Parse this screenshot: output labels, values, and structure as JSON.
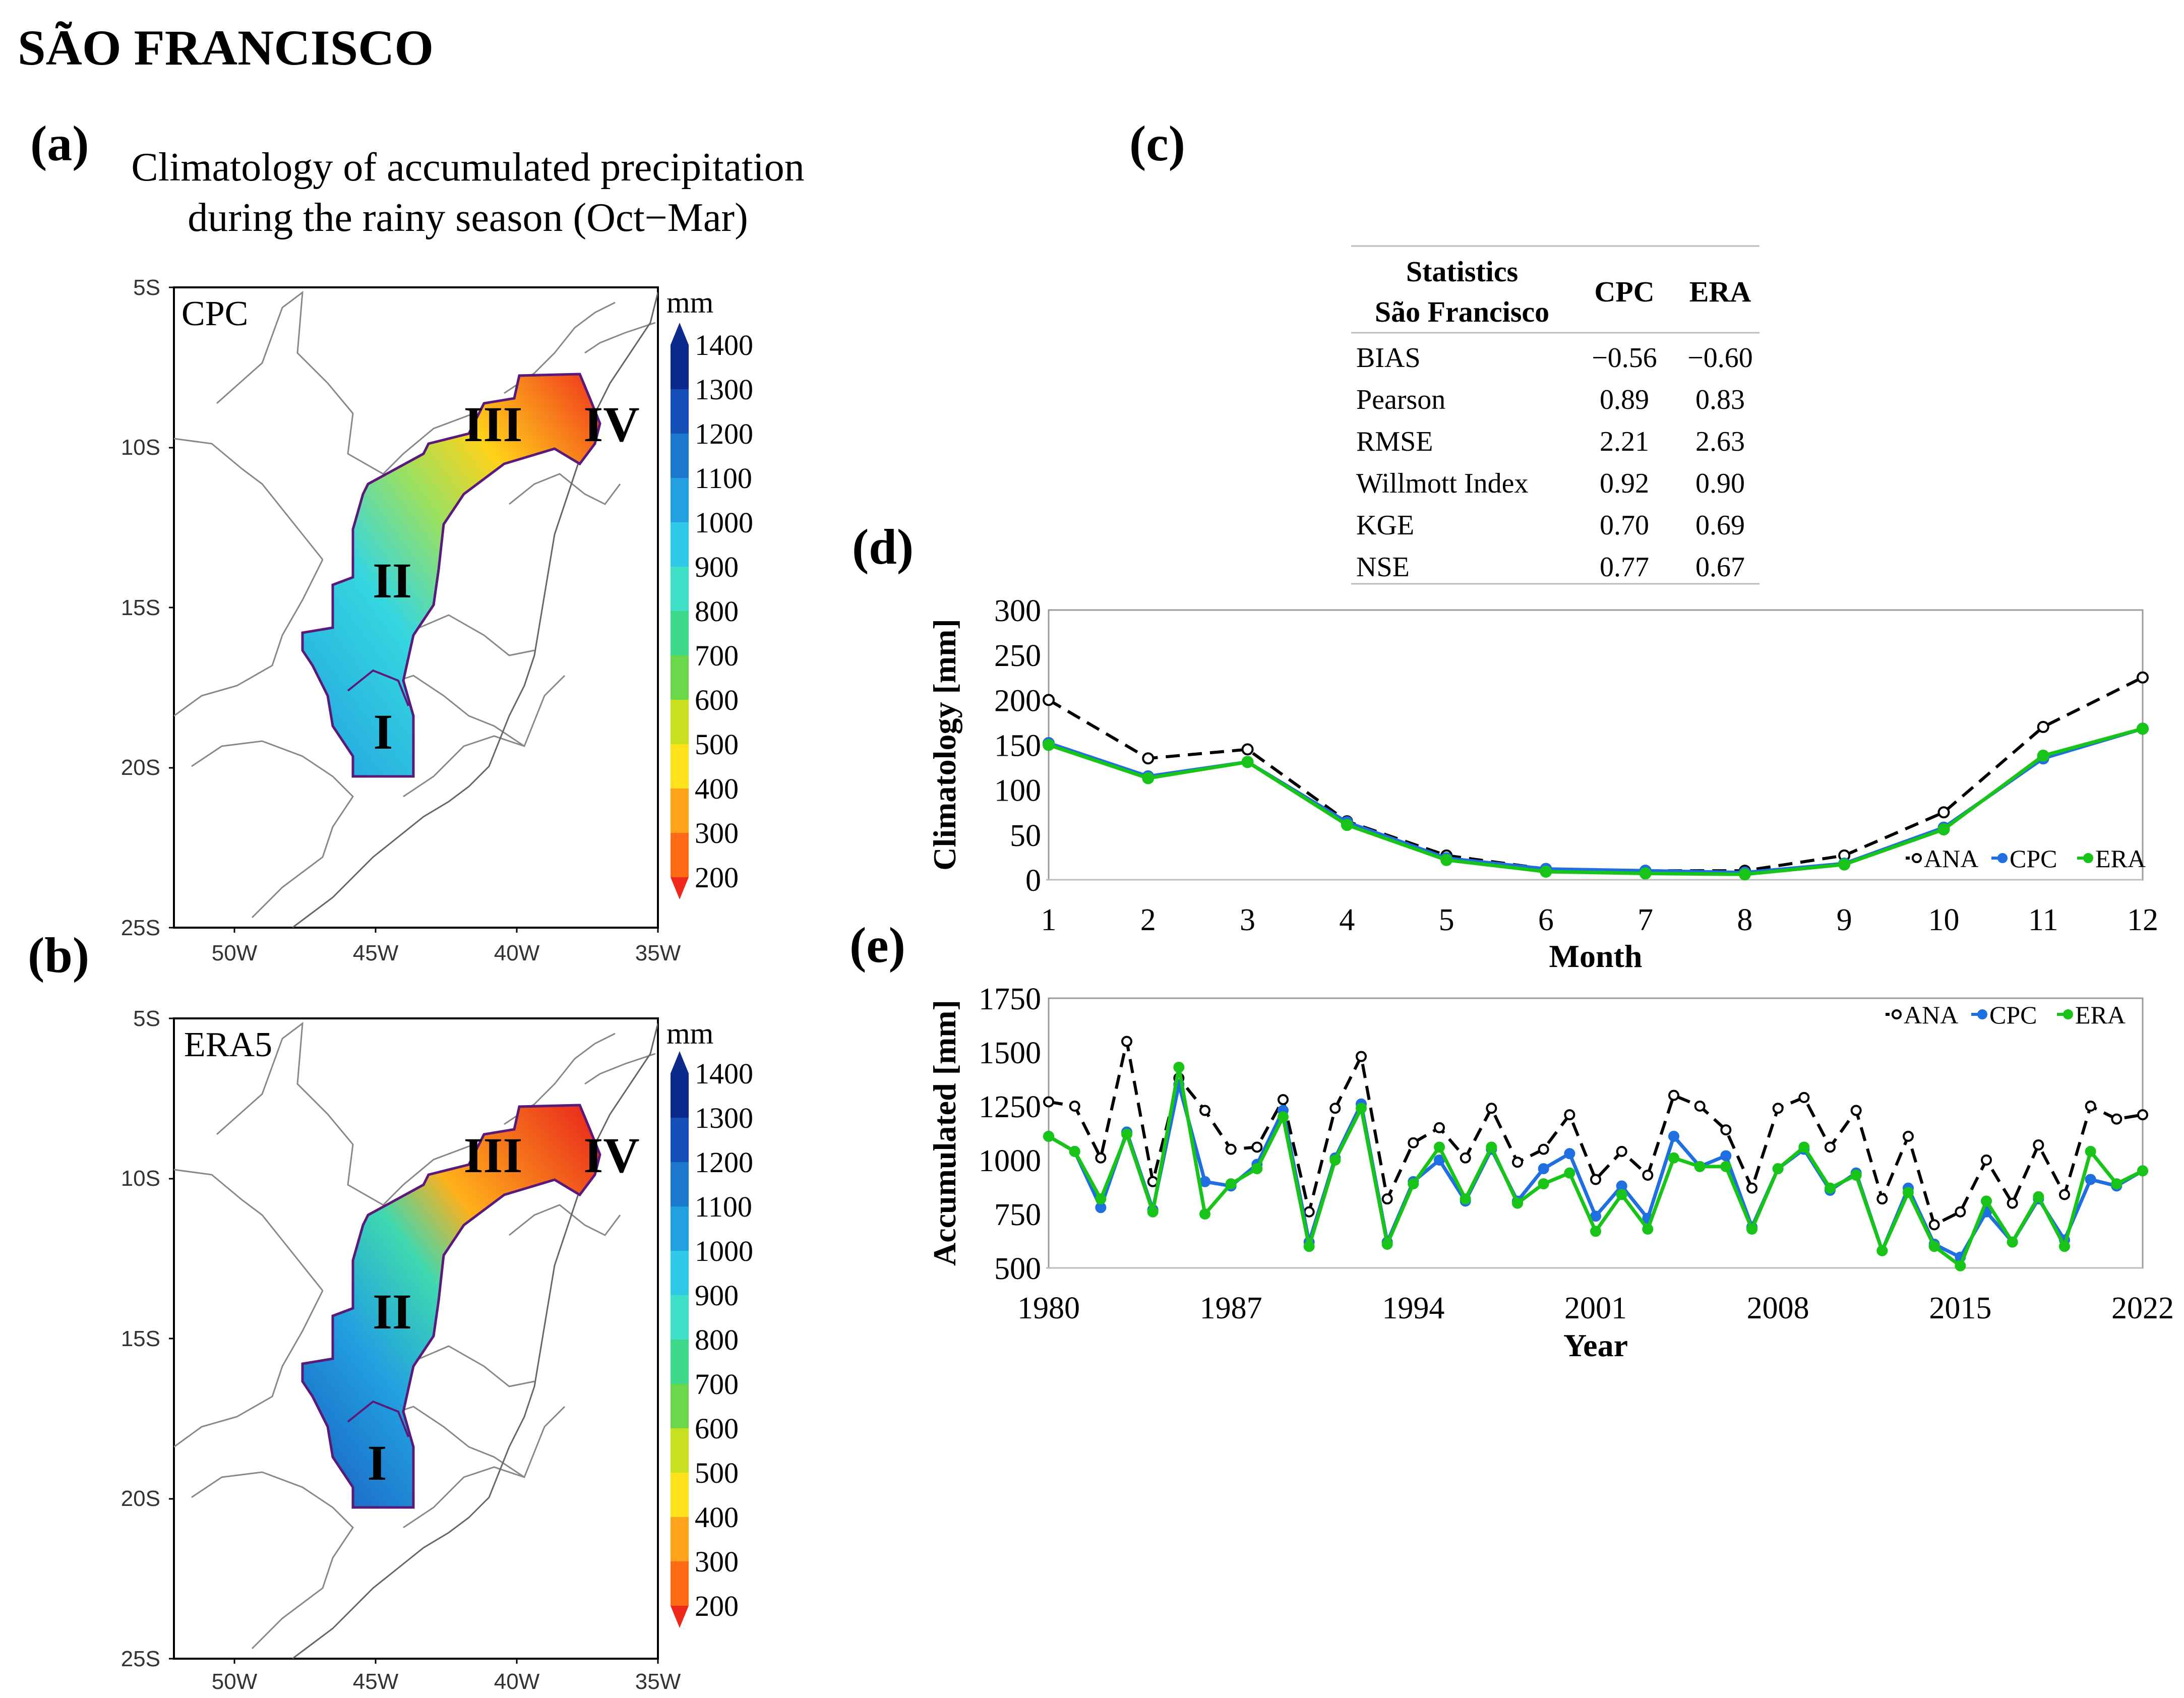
{
  "figure_title": "SÃO FRANCISCO",
  "panel_labels": {
    "a": "(a)",
    "b": "(b)",
    "c": "(c)",
    "d": "(d)",
    "e": "(e)"
  },
  "maps": {
    "title_line1": "Climatology of accumulated precipitation",
    "title_line2": "during the rainy season (Oct−Mar)",
    "panel_a_label": "CPC",
    "panel_b_label": "ERA5",
    "lat_ticks": [
      "5S",
      "10S",
      "15S",
      "20S",
      "25S"
    ],
    "lon_ticks": [
      "50W",
      "45W",
      "40W",
      "35W"
    ],
    "region_labels": [
      "I",
      "II",
      "III",
      "IV"
    ],
    "colorbar_unit": "mm",
    "colorbar_ticks": [
      "1400",
      "1300",
      "1200",
      "1100",
      "1000",
      "900",
      "800",
      "700",
      "600",
      "500",
      "400",
      "300",
      "200"
    ],
    "colorbar_colors": [
      "#0b2a8c",
      "#1450b8",
      "#1c78cc",
      "#22a0e0",
      "#2ecae8",
      "#3ee0c8",
      "#3ed88a",
      "#6ad84a",
      "#c8e020",
      "#ffe21a",
      "#ffa41a",
      "#ff6a14",
      "#f0281c"
    ]
  },
  "stats_table": {
    "header": [
      "Statistics\nSão Francisco",
      "CPC",
      "ERA"
    ],
    "header_line1": "Statistics",
    "header_line2": "São Francisco",
    "col_cpc": "CPC",
    "col_era": "ERA",
    "rows": [
      {
        "name": "BIAS",
        "cpc": "−0.56",
        "era": "−0.60"
      },
      {
        "name": "Pearson",
        "cpc": "0.89",
        "era": "0.83"
      },
      {
        "name": "RMSE",
        "cpc": "2.21",
        "era": "2.63"
      },
      {
        "name": "Willmott Index",
        "cpc": "0.92",
        "era": "0.90"
      },
      {
        "name": "KGE",
        "cpc": "0.70",
        "era": "0.69"
      },
      {
        "name": "NSE",
        "cpc": "0.77",
        "era": "0.67"
      }
    ]
  },
  "colors": {
    "ANA": "#000000",
    "CPC": "#1f6fe0",
    "ERA": "#19c419",
    "boundary": "#5a1a7a"
  },
  "chart_data": [
    {
      "type": "line",
      "panel": "d",
      "xlabel": "Month",
      "ylabel": "Climatology [mm]",
      "x": [
        1,
        2,
        3,
        4,
        5,
        6,
        7,
        8,
        9,
        10,
        11,
        12
      ],
      "ylim": [
        0,
        300
      ],
      "yticks": [
        0,
        50,
        100,
        150,
        200,
        250,
        300
      ],
      "legend_position": "bottom-right",
      "series": [
        {
          "name": "ANA",
          "style": "dashed",
          "values": [
            200,
            135,
            145,
            65,
            27,
            12,
            10,
            10,
            27,
            75,
            170,
            225
          ]
        },
        {
          "name": "CPC",
          "style": "solid",
          "values": [
            152,
            115,
            131,
            64,
            24,
            12,
            10,
            8,
            18,
            58,
            135,
            168
          ]
        },
        {
          "name": "ERA",
          "style": "solid",
          "values": [
            150,
            113,
            131,
            61,
            22,
            9,
            7,
            6,
            17,
            56,
            138,
            168
          ]
        }
      ]
    },
    {
      "type": "line",
      "panel": "e",
      "xlabel": "Year",
      "ylabel": "Accumulated [mm]",
      "x": [
        1980,
        1981,
        1982,
        1983,
        1984,
        1985,
        1986,
        1987,
        1988,
        1989,
        1990,
        1991,
        1992,
        1993,
        1994,
        1995,
        1996,
        1997,
        1998,
        1999,
        2000,
        2001,
        2002,
        2003,
        2004,
        2005,
        2006,
        2007,
        2008,
        2009,
        2010,
        2011,
        2012,
        2013,
        2014,
        2015,
        2016,
        2017,
        2018,
        2019,
        2020,
        2021,
        2022
      ],
      "xticks": [
        1980,
        1987,
        1994,
        2001,
        2008,
        2015,
        2022
      ],
      "ylim": [
        500,
        1750
      ],
      "yticks": [
        500,
        750,
        1000,
        1250,
        1500,
        1750
      ],
      "legend_position": "top-right",
      "series": [
        {
          "name": "ANA",
          "style": "dashed",
          "values": [
            1270,
            1250,
            1010,
            1550,
            900,
            1380,
            1230,
            1050,
            1060,
            1280,
            760,
            1240,
            1480,
            820,
            1080,
            1150,
            1010,
            1240,
            990,
            1050,
            1210,
            910,
            1040,
            930,
            1300,
            1250,
            1140,
            870,
            1240,
            1290,
            1060,
            1230,
            820,
            1110,
            700,
            760,
            1000,
            800,
            1070,
            840,
            1250,
            1190,
            1210
          ]
        },
        {
          "name": "CPC",
          "style": "solid",
          "values": [
            1110,
            1040,
            780,
            1130,
            770,
            1350,
            900,
            880,
            980,
            1230,
            620,
            1010,
            1260,
            620,
            900,
            1000,
            810,
            1050,
            810,
            960,
            1030,
            740,
            880,
            730,
            1110,
            970,
            1020,
            690,
            960,
            1050,
            860,
            940,
            580,
            870,
            610,
            550,
            760,
            620,
            820,
            630,
            910,
            880,
            950
          ]
        },
        {
          "name": "ERA",
          "style": "solid",
          "values": [
            1110,
            1040,
            820,
            1120,
            760,
            1430,
            750,
            890,
            960,
            1200,
            600,
            1000,
            1240,
            610,
            890,
            1060,
            820,
            1060,
            800,
            890,
            940,
            670,
            840,
            680,
            1010,
            970,
            970,
            680,
            960,
            1060,
            870,
            930,
            580,
            850,
            600,
            510,
            810,
            620,
            830,
            600,
            1040,
            890,
            950
          ]
        }
      ]
    }
  ]
}
